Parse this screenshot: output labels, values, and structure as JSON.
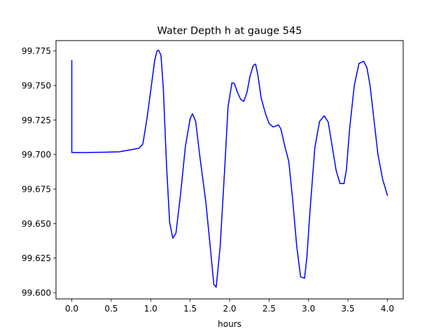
{
  "chart_data": {
    "type": "line",
    "title": "Water Depth h at gauge 545",
    "xlabel": "hours",
    "ylabel": "",
    "xlim": [
      -0.2,
      4.2
    ],
    "ylim": [
      99.5955,
      99.7825
    ],
    "x_ticks": [
      0.0,
      0.5,
      1.0,
      1.5,
      2.0,
      2.5,
      3.0,
      3.5,
      4.0
    ],
    "x_tick_labels": [
      "0.0",
      "0.5",
      "1.0",
      "1.5",
      "2.0",
      "2.5",
      "3.0",
      "3.5",
      "4.0"
    ],
    "y_ticks": [
      99.6,
      99.625,
      99.65,
      99.675,
      99.7,
      99.725,
      99.75,
      99.775
    ],
    "y_tick_labels": [
      "99.600",
      "99.625",
      "99.650",
      "99.675",
      "99.700",
      "99.725",
      "99.750",
      "99.775"
    ],
    "grid": false,
    "series": [
      {
        "color": "#0000ff",
        "x": [
          0.0,
          0.0,
          0.2,
          0.4,
          0.6,
          0.75,
          0.85,
          0.9,
          0.95,
          1.0,
          1.05,
          1.08,
          1.1,
          1.13,
          1.16,
          1.2,
          1.24,
          1.28,
          1.32,
          1.38,
          1.44,
          1.5,
          1.53,
          1.57,
          1.62,
          1.7,
          1.76,
          1.8,
          1.83,
          1.88,
          1.94,
          1.98,
          2.03,
          2.06,
          2.1,
          2.14,
          2.18,
          2.22,
          2.26,
          2.3,
          2.33,
          2.36,
          2.4,
          2.45,
          2.5,
          2.55,
          2.58,
          2.62,
          2.65,
          2.7,
          2.75,
          2.8,
          2.85,
          2.9,
          2.95,
          2.98,
          3.02,
          3.08,
          3.14,
          3.2,
          3.25,
          3.3,
          3.35,
          3.4,
          3.45,
          3.48,
          3.52,
          3.58,
          3.64,
          3.7,
          3.74,
          3.78,
          3.82,
          3.88,
          3.94,
          4.0
        ],
        "y": [
          99.768,
          99.7015,
          99.7015,
          99.7017,
          99.702,
          99.7035,
          99.7045,
          99.7075,
          99.725,
          99.746,
          99.768,
          99.775,
          99.7755,
          99.772,
          99.748,
          99.693,
          99.651,
          99.6395,
          99.643,
          99.672,
          99.706,
          99.726,
          99.7295,
          99.724,
          99.7,
          99.665,
          99.63,
          99.606,
          99.604,
          99.633,
          99.692,
          99.7345,
          99.752,
          99.7515,
          99.745,
          99.74,
          99.7385,
          99.745,
          99.757,
          99.7645,
          99.7655,
          99.757,
          99.741,
          99.7305,
          99.7225,
          99.72,
          99.7205,
          99.7215,
          99.7185,
          99.706,
          99.695,
          99.667,
          99.634,
          99.6115,
          99.6105,
          99.626,
          99.66,
          99.705,
          99.724,
          99.728,
          99.7235,
          99.706,
          99.6885,
          99.679,
          99.679,
          99.689,
          99.718,
          99.75,
          99.766,
          99.7675,
          99.763,
          99.75,
          99.73,
          99.7,
          99.682,
          99.6705
        ]
      }
    ]
  }
}
